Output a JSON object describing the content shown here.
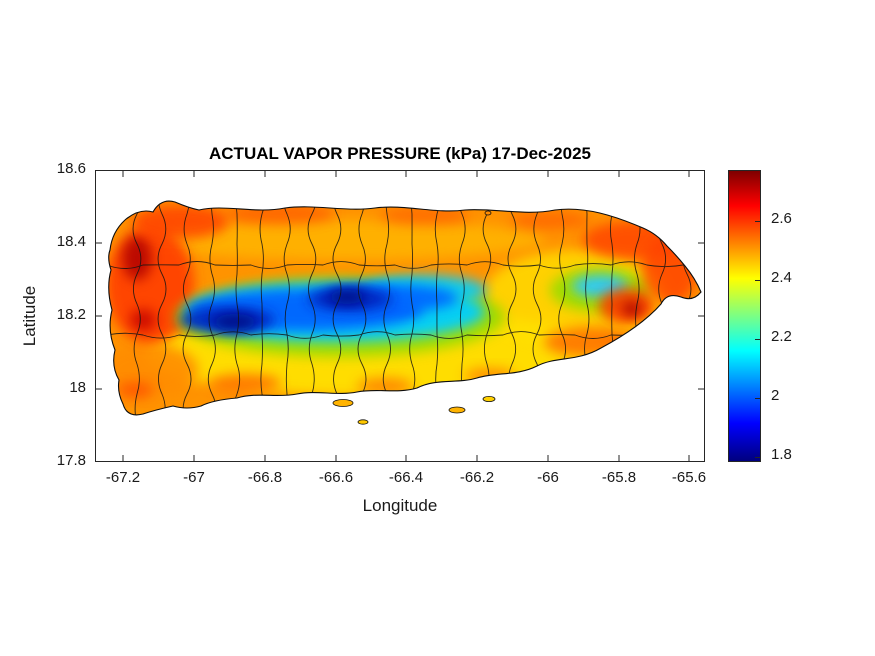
{
  "figure": {
    "title": "ACTUAL VAPOR PRESSURE (kPa) 17-Dec-2025",
    "xlabel": "Longitude",
    "ylabel": "Latitude"
  },
  "chart_data": {
    "type": "heatmap",
    "title": "ACTUAL VAPOR PRESSURE (kPa) 17-Dec-2025",
    "variable": "actual vapor pressure",
    "units": "kPa",
    "date": "17-Dec-2025",
    "region": "Puerto Rico with municipality boundaries overlaid",
    "xlabel": "Longitude",
    "ylabel": "Latitude",
    "xlim": [
      -67.28,
      -65.55
    ],
    "ylim": [
      17.8,
      18.6
    ],
    "x_ticks": [
      -67.2,
      -67,
      -66.8,
      -66.6,
      -66.4,
      -66.2,
      -66,
      -65.8,
      -65.6
    ],
    "x_tick_labels": [
      "-67.2",
      "-67",
      "-66.8",
      "-66.6",
      "-66.4",
      "-66.2",
      "-66",
      "-65.8",
      "-65.6"
    ],
    "y_ticks": [
      18.6,
      18.4,
      18.2,
      18,
      17.8
    ],
    "y_tick_labels": [
      "18.6",
      "18.4",
      "18.2",
      "18",
      "17.8"
    ],
    "grid": false,
    "colorbar": {
      "position": "right",
      "ticks": [
        2.6,
        2.4,
        2.2,
        2,
        1.8
      ],
      "tick_labels": [
        "2.6",
        "2.4",
        "2.2",
        "2",
        "1.8"
      ],
      "range": [
        1.78,
        2.77
      ],
      "colormap": "jet",
      "colormap_stops": [
        "#00007F",
        "#0000FF",
        "#00FFFF",
        "#FFFF00",
        "#FF0000",
        "#7F0000"
      ]
    },
    "features": [
      {
        "area": "west coast (Rincon / Mayaguez)",
        "lon": -67.15,
        "lat": 18.25,
        "value_kpa": 2.7
      },
      {
        "area": "northwest coast (Aguadilla)",
        "lon": -67.0,
        "lat": 18.45,
        "value_kpa": 2.6
      },
      {
        "area": "north coast",
        "lon": -66.4,
        "lat": 18.45,
        "value_kpa": 2.55
      },
      {
        "area": "Cordillera Central west (minimum)",
        "lon": -66.88,
        "lat": 18.18,
        "value_kpa": 1.8
      },
      {
        "area": "Cordillera Central east (minimum)",
        "lon": -66.57,
        "lat": 18.25,
        "value_kpa": 1.9
      },
      {
        "area": "mid-slope ring around mountains",
        "lon": -66.7,
        "lat": 18.32,
        "value_kpa": 2.2
      },
      {
        "area": "south coast",
        "lon": -66.4,
        "lat": 18.0,
        "value_kpa": 2.45
      },
      {
        "area": "southeast coast",
        "lon": -65.9,
        "lat": 18.05,
        "value_kpa": 2.55
      },
      {
        "area": "El Yunque / Sierra de Luquillo",
        "lon": -65.85,
        "lat": 18.28,
        "value_kpa": 2.2
      },
      {
        "area": "east coast (Fajardo)",
        "lon": -65.65,
        "lat": 18.3,
        "value_kpa": 2.6
      }
    ]
  }
}
